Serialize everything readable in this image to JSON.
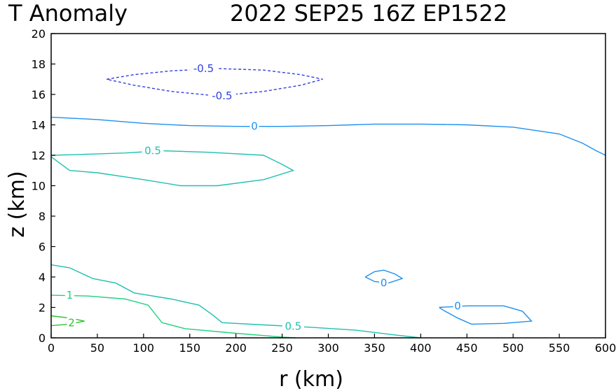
{
  "chart_data": {
    "type": "contour",
    "title_left": "T Anomaly",
    "title_right": "2022  SEP25  16Z    EP1522",
    "xlabel": "r  (km)",
    "ylabel": "z  (km)",
    "xlim": [
      0,
      600
    ],
    "ylim": [
      0,
      20
    ],
    "x_ticks": [
      0,
      50,
      100,
      150,
      200,
      250,
      300,
      350,
      400,
      450,
      500,
      550,
      600
    ],
    "y_ticks": [
      0,
      2,
      4,
      6,
      8,
      10,
      12,
      14,
      16,
      18,
      20
    ],
    "grid": false,
    "contours": [
      {
        "level": "-0.5",
        "color": "#3040e0",
        "dashed": true,
        "points": [
          [
            60,
            17.0
          ],
          [
            90,
            17.3
          ],
          [
            130,
            17.55
          ],
          [
            180,
            17.7
          ],
          [
            230,
            17.6
          ],
          [
            270,
            17.3
          ],
          [
            294,
            17.0
          ],
          [
            270,
            16.6
          ],
          [
            230,
            16.2
          ],
          [
            180,
            15.9
          ],
          [
            130,
            16.2
          ],
          [
            90,
            16.6
          ],
          [
            60,
            17.0
          ]
        ],
        "labels": [
          {
            "text": "-0.5",
            "x": 165,
            "y": 17.7
          },
          {
            "text": "-0.5",
            "x": 185,
            "y": 15.9
          }
        ]
      },
      {
        "level": "0",
        "color": "#1e90f0",
        "dashed": false,
        "points": [
          [
            0,
            14.5
          ],
          [
            50,
            14.35
          ],
          [
            100,
            14.1
          ],
          [
            150,
            13.95
          ],
          [
            200,
            13.9
          ],
          [
            250,
            13.9
          ],
          [
            300,
            13.95
          ],
          [
            350,
            14.05
          ],
          [
            400,
            14.05
          ],
          [
            450,
            14.0
          ],
          [
            500,
            13.85
          ],
          [
            550,
            13.4
          ],
          [
            575,
            12.8
          ],
          [
            590,
            12.3
          ],
          [
            600,
            12.0
          ]
        ],
        "labels": [
          {
            "text": "0",
            "x": 220,
            "y": 13.9
          }
        ]
      },
      {
        "level": "0",
        "color": "#1e90f0",
        "dashed": false,
        "points": [
          [
            340,
            4.0
          ],
          [
            350,
            4.35
          ],
          [
            360,
            4.45
          ],
          [
            372,
            4.2
          ],
          [
            380,
            3.9
          ],
          [
            365,
            3.6
          ],
          [
            350,
            3.7
          ],
          [
            340,
            4.0
          ]
        ],
        "labels": [
          {
            "text": "0",
            "x": 360,
            "y": 3.6
          }
        ]
      },
      {
        "level": "0",
        "color": "#1e90f0",
        "dashed": false,
        "points": [
          [
            420,
            2.0
          ],
          [
            450,
            2.1
          ],
          [
            490,
            2.1
          ],
          [
            510,
            1.75
          ],
          [
            520,
            1.1
          ],
          [
            490,
            0.95
          ],
          [
            455,
            0.9
          ],
          [
            440,
            1.3
          ],
          [
            425,
            1.8
          ],
          [
            420,
            2.0
          ]
        ],
        "labels": [
          {
            "text": "0",
            "x": 440,
            "y": 2.1
          }
        ]
      },
      {
        "level": "0.5",
        "color": "#20c0b0",
        "dashed": false,
        "points": [
          [
            0,
            12.0
          ],
          [
            30,
            12.05
          ],
          [
            80,
            12.15
          ],
          [
            120,
            12.3
          ],
          [
            170,
            12.2
          ],
          [
            230,
            12.0
          ],
          [
            250,
            11.4
          ],
          [
            262,
            11.0
          ],
          [
            230,
            10.4
          ],
          [
            180,
            10.0
          ],
          [
            140,
            10.0
          ],
          [
            100,
            10.4
          ],
          [
            50,
            10.85
          ],
          [
            20,
            11.0
          ],
          [
            0,
            11.9
          ]
        ],
        "labels": [
          {
            "text": "0.5",
            "x": 110,
            "y": 12.3
          }
        ]
      },
      {
        "level": "0.5",
        "color": "#20c0b0",
        "dashed": false,
        "points": [
          [
            0,
            4.8
          ],
          [
            20,
            4.6
          ],
          [
            45,
            3.9
          ],
          [
            70,
            3.6
          ],
          [
            90,
            2.95
          ],
          [
            130,
            2.55
          ],
          [
            160,
            2.15
          ],
          [
            175,
            1.5
          ],
          [
            185,
            1.0
          ],
          [
            230,
            0.85
          ],
          [
            280,
            0.7
          ],
          [
            330,
            0.5
          ],
          [
            370,
            0.2
          ],
          [
            400,
            0.0
          ]
        ],
        "labels": [
          {
            "text": "0.5",
            "x": 262,
            "y": 0.75
          }
        ]
      },
      {
        "level": "1",
        "color": "#20d080",
        "dashed": false,
        "points": [
          [
            0,
            2.8
          ],
          [
            40,
            2.75
          ],
          [
            80,
            2.55
          ],
          [
            105,
            2.15
          ],
          [
            120,
            1.0
          ],
          [
            145,
            0.6
          ],
          [
            200,
            0.3
          ],
          [
            250,
            0.05
          ],
          [
            265,
            0.0
          ]
        ],
        "labels": [
          {
            "text": "1",
            "x": 20,
            "y": 2.8
          }
        ]
      },
      {
        "level": "2",
        "color": "#30c030",
        "dashed": false,
        "points": [
          [
            0,
            1.45
          ],
          [
            20,
            1.3
          ],
          [
            36,
            1.1
          ],
          [
            20,
            0.9
          ],
          [
            0,
            0.8
          ]
        ],
        "labels": [
          {
            "text": "2",
            "x": 22,
            "y": 1.0
          }
        ]
      }
    ]
  }
}
